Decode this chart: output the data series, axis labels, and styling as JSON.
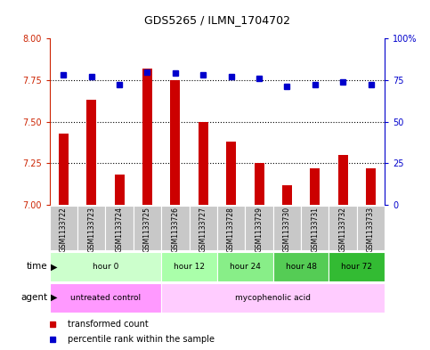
{
  "title": "GDS5265 / ILMN_1704702",
  "samples": [
    "GSM1133722",
    "GSM1133723",
    "GSM1133724",
    "GSM1133725",
    "GSM1133726",
    "GSM1133727",
    "GSM1133728",
    "GSM1133729",
    "GSM1133730",
    "GSM1133731",
    "GSM1133732",
    "GSM1133733"
  ],
  "bar_values": [
    7.43,
    7.63,
    7.18,
    7.82,
    7.75,
    7.5,
    7.38,
    7.25,
    7.12,
    7.22,
    7.3,
    7.22
  ],
  "dot_values": [
    78,
    77,
    72,
    80,
    79,
    78,
    77,
    76,
    71,
    72,
    74,
    72
  ],
  "bar_color": "#cc0000",
  "dot_color": "#0000cc",
  "ylim_left": [
    7.0,
    8.0
  ],
  "ylim_right": [
    0,
    100
  ],
  "yticks_left": [
    7.0,
    7.25,
    7.5,
    7.75,
    8.0
  ],
  "yticks_right": [
    0,
    25,
    50,
    75,
    100
  ],
  "ytick_labels_right": [
    "0",
    "25",
    "50",
    "75",
    "100%"
  ],
  "hlines": [
    7.25,
    7.5,
    7.75
  ],
  "time_groups": [
    {
      "label": "hour 0",
      "start": 0,
      "end": 4,
      "color": "#ccffcc"
    },
    {
      "label": "hour 12",
      "start": 4,
      "end": 6,
      "color": "#aaffaa"
    },
    {
      "label": "hour 24",
      "start": 6,
      "end": 8,
      "color": "#88ee88"
    },
    {
      "label": "hour 48",
      "start": 8,
      "end": 10,
      "color": "#55cc55"
    },
    {
      "label": "hour 72",
      "start": 10,
      "end": 12,
      "color": "#33bb33"
    }
  ],
  "agent_groups": [
    {
      "label": "untreated control",
      "start": 0,
      "end": 4,
      "color": "#ff99ff"
    },
    {
      "label": "mycophenolic acid",
      "start": 4,
      "end": 12,
      "color": "#ffccff"
    }
  ],
  "sample_box_color": "#c8c8c8",
  "legend_items": [
    {
      "label": "transformed count",
      "color": "#cc0000"
    },
    {
      "label": "percentile rank within the sample",
      "color": "#0000cc"
    }
  ],
  "bar_width": 0.35,
  "background_color": "#ffffff",
  "tick_color_left": "#cc2200",
  "tick_color_right": "#0000cc"
}
